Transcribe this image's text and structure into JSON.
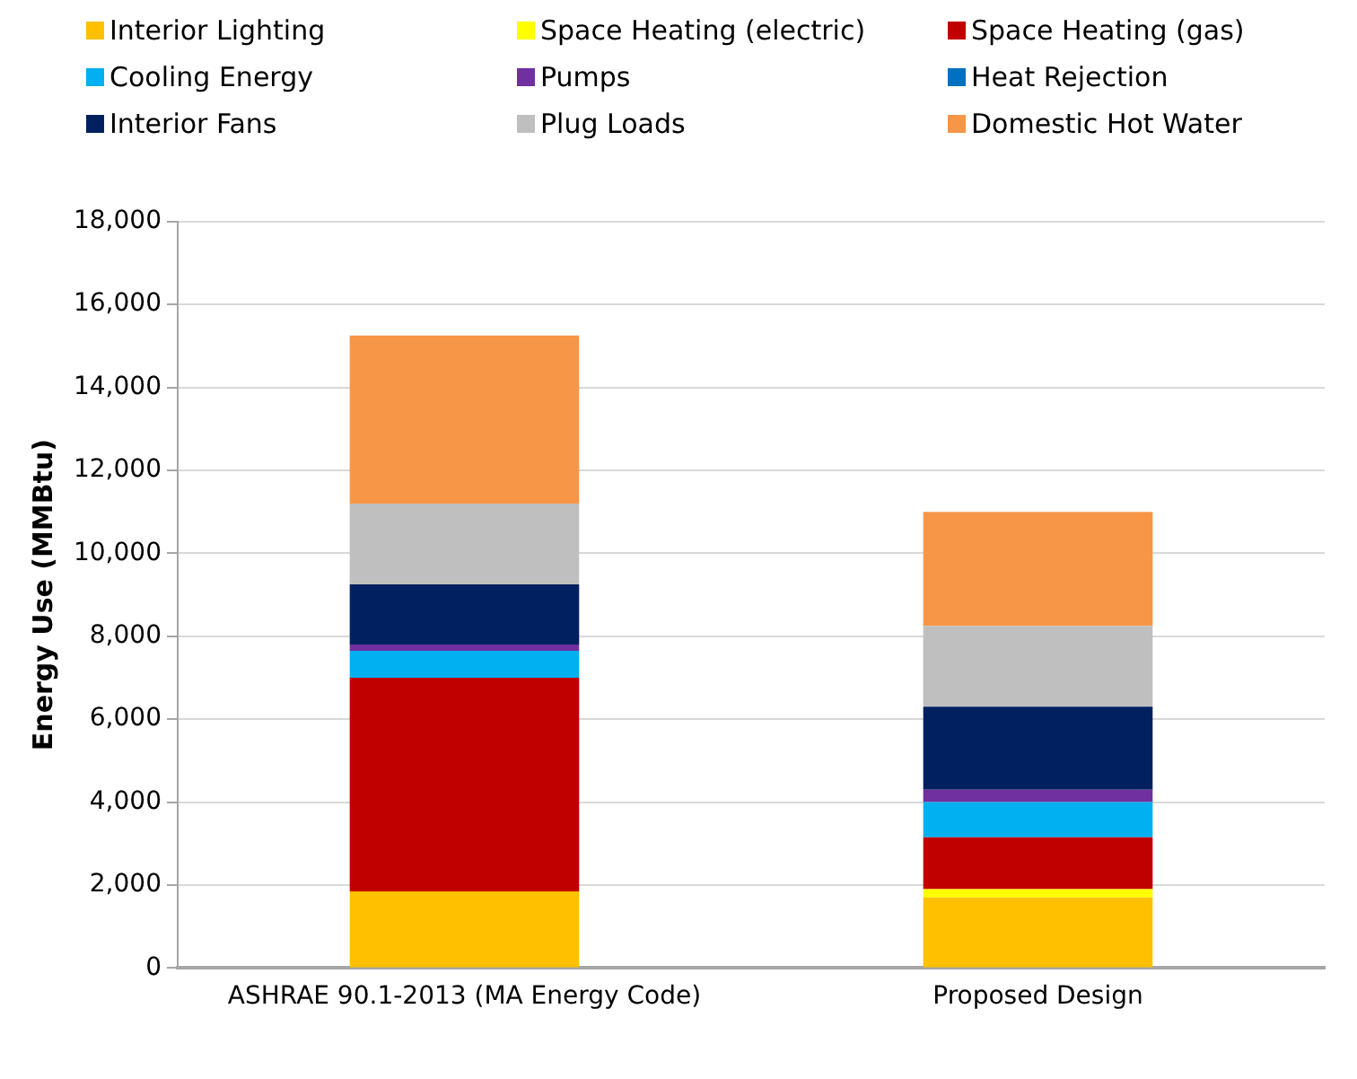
{
  "chart_data": {
    "type": "bar",
    "stacked": true,
    "ylabel": "Energy Use (MMBtu)",
    "categories": [
      "ASHRAE 90.1-2013 (MA Energy Code)",
      "Proposed Design"
    ],
    "series": [
      {
        "name": "Interior Lighting",
        "color": "#ffc000",
        "values": [
          1850,
          1700
        ]
      },
      {
        "name": "Space Heating (electric)",
        "color": "#ffff00",
        "values": [
          0,
          200
        ]
      },
      {
        "name": "Space Heating (gas)",
        "color": "#c00000",
        "values": [
          5150,
          1250
        ]
      },
      {
        "name": "Cooling Energy",
        "color": "#00b0f0",
        "values": [
          650,
          850
        ]
      },
      {
        "name": "Pumps",
        "color": "#7030a0",
        "values": [
          150,
          300
        ]
      },
      {
        "name": "Heat Rejection",
        "color": "#0070c0",
        "values": [
          0,
          0
        ]
      },
      {
        "name": "Interior Fans",
        "color": "#002060",
        "values": [
          1450,
          2000
        ]
      },
      {
        "name": "Plug Loads",
        "color": "#bfbfbf",
        "values": [
          1950,
          1950
        ]
      },
      {
        "name": "Domestic Hot Water",
        "color": "#f79646",
        "values": [
          4050,
          2750
        ]
      }
    ],
    "ylim": [
      0,
      18000
    ],
    "yticks": [
      0,
      {
        "value": 2000,
        "label": "2,000"
      },
      {
        "value": 4000,
        "label": "4,000"
      },
      {
        "value": 6000,
        "label": "6,000"
      },
      {
        "value": 8000,
        "label": "8,000"
      },
      {
        "value": 10000,
        "label": "10,000"
      },
      {
        "value": 12000,
        "label": "12,000"
      },
      {
        "value": 14000,
        "label": "14,000"
      },
      {
        "value": 16000,
        "label": "16,000"
      },
      {
        "value": 18000,
        "label": "18,000"
      }
    ],
    "grid": "y",
    "legend": "top"
  }
}
